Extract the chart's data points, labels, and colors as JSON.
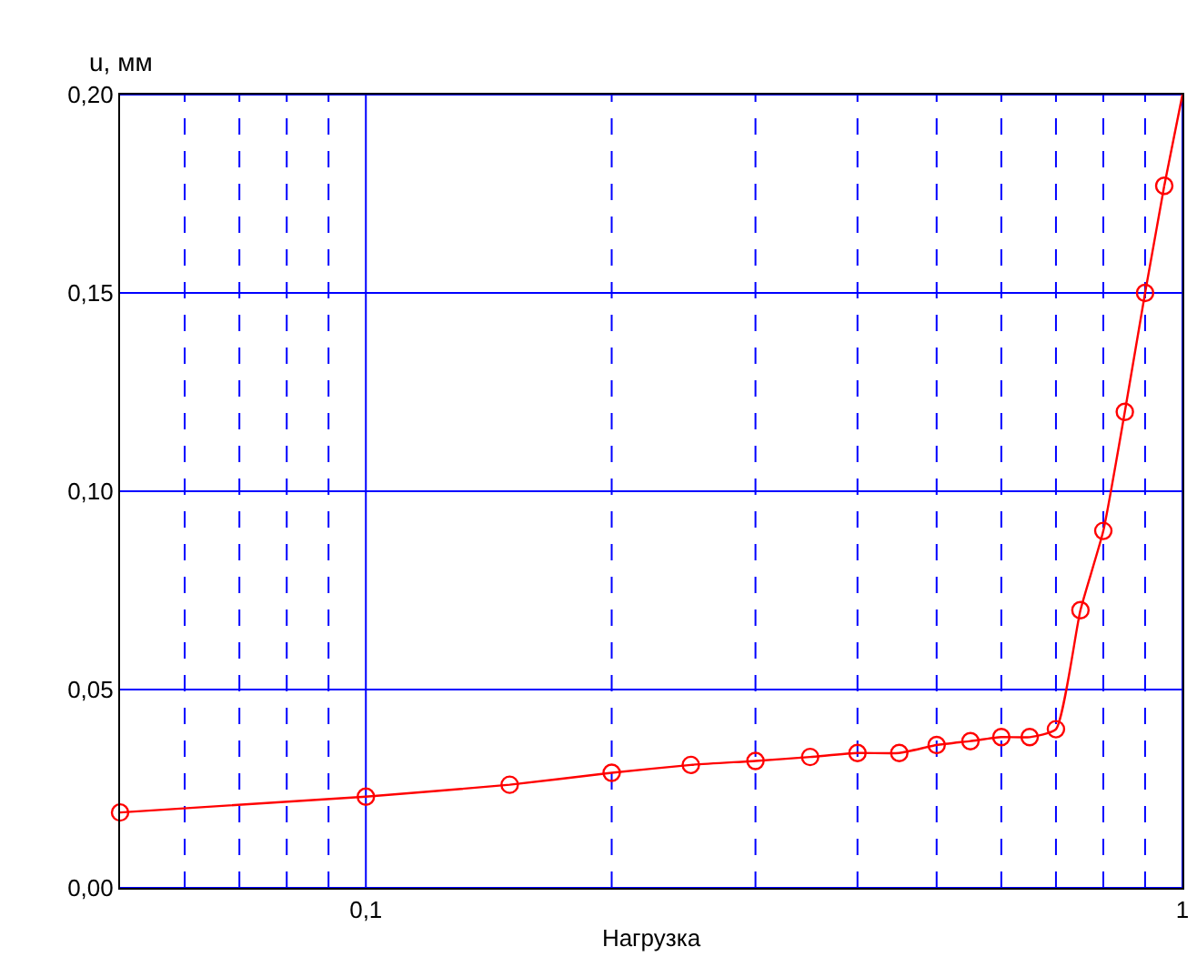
{
  "chart_data": {
    "type": "line",
    "xlabel": "Нагрузка",
    "ylabel": "u, мм",
    "log": "x",
    "grid": true,
    "marker": "circle",
    "line_style": "solid",
    "xlim": [
      0.05,
      1
    ],
    "xticks": [
      {
        "value": 0.06,
        "label": null
      },
      {
        "value": 0.07,
        "label": null
      },
      {
        "value": 0.08,
        "label": null
      },
      {
        "value": 0.09,
        "label": null
      },
      {
        "value": 0.1,
        "label": "0,1"
      },
      {
        "value": 0.2,
        "label": null
      },
      {
        "value": 0.3,
        "label": null
      },
      {
        "value": 0.4,
        "label": null
      },
      {
        "value": 0.5,
        "label": null
      },
      {
        "value": 0.6,
        "label": null
      },
      {
        "value": 0.7,
        "label": null
      },
      {
        "value": 0.8,
        "label": null
      },
      {
        "value": 0.9,
        "label": null
      },
      {
        "value": 1,
        "label": "1"
      }
    ],
    "ylim": [
      0,
      0.2
    ],
    "yticks": [
      {
        "value": 0,
        "label": "0,00"
      },
      {
        "value": 0.05,
        "label": "0,05"
      },
      {
        "value": 0.1,
        "label": "0,10"
      },
      {
        "value": 0.15,
        "label": "0,15"
      },
      {
        "value": 0.2,
        "label": "0,20"
      }
    ],
    "series": [
      {
        "color": "#ff0000",
        "x": [
          0.05,
          0.1,
          0.15,
          0.2,
          0.25,
          0.3,
          0.35,
          0.4,
          0.45,
          0.5,
          0.55,
          0.6,
          0.65,
          0.7,
          0.75,
          0.8,
          0.85,
          0.9,
          0.95
        ],
        "values": [
          0.019,
          0.023,
          0.026,
          0.029,
          0.031,
          0.032,
          0.033,
          0.034,
          0.034,
          0.036,
          0.037,
          0.038,
          0.038,
          0.04,
          0.07,
          0.09,
          0.12,
          0.15,
          0.177
        ]
      },
      {
        "color": "#ff0000",
        "marker": "none",
        "x": [
          0.95,
          1
        ],
        "values": [
          0.177,
          0.2
        ]
      }
    ]
  }
}
